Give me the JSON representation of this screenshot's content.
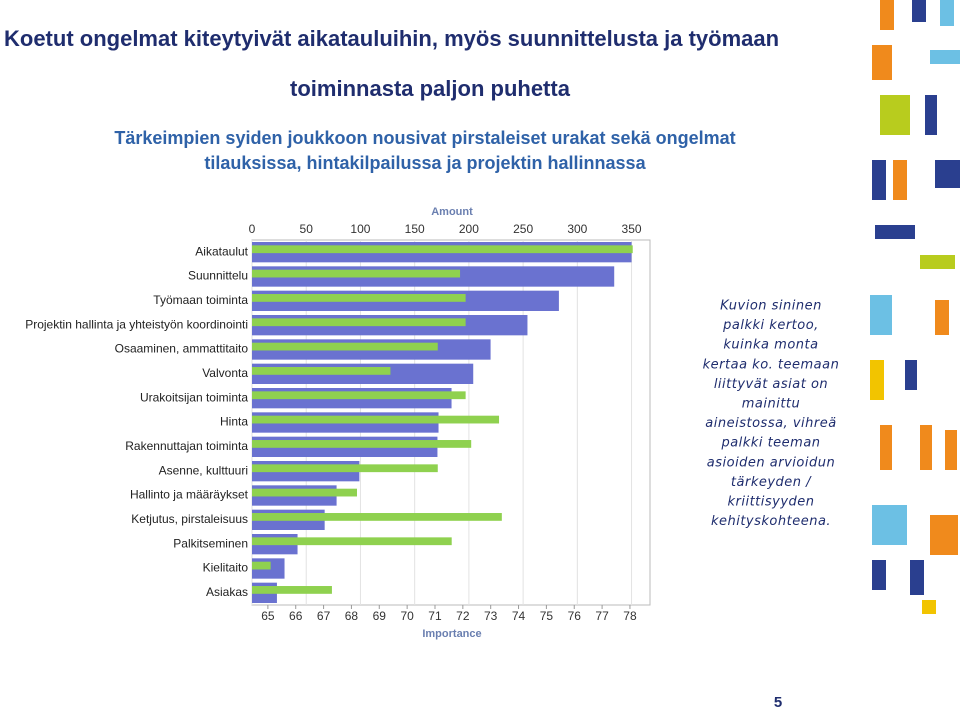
{
  "header": {
    "title_lines": [
      "Koetut ongelmat kiteytyivät aikatauluihin, myös suunnittelusta ja työmaan",
      "toiminnasta paljon puhetta"
    ],
    "subtitle_lines": [
      "Tärkeimpien syiden joukkoon nousivat pirstaleiset urakat sekä ongelmat",
      "tilauksissa, hintakilpailussa ja projektin hallinnassa"
    ]
  },
  "chart_data": {
    "type": "dual-hbar",
    "xlabel": "Amount",
    "x2label": "Importance",
    "categories": [
      "Aikataulut",
      "Suunnittelu",
      "Työmaan toiminta",
      "Projektin hallinta ja yhteistyön koordinointi",
      "Osaaminen, ammattitaito",
      "Valvonta",
      "Urakoitsijan toiminta",
      "Hinta",
      "Rakennuttajan toiminta",
      "Asenne, kulttuuri",
      "Hallinto ja määräykset",
      "Ketjutus, pirstaleisuus",
      "Palkitseminen",
      "Kielitaito",
      "Asiakas"
    ],
    "series": [
      {
        "color": "#6a72d0",
        "values": [
          350,
          334,
          283,
          254,
          220,
          204,
          184,
          172,
          171,
          99,
          78,
          67,
          42,
          30,
          23
        ]
      },
      {
        "color": "#8fd14f",
        "axis": "x2",
        "values": [
          78.1,
          71.9,
          72.1,
          72.1,
          71.1,
          69.4,
          72.1,
          73.3,
          72.3,
          71.1,
          68.2,
          73.4,
          71.6,
          65.1,
          67.3
        ]
      }
    ],
    "xlim": [
      0,
      367
    ],
    "xticks": [
      0,
      50,
      100,
      150,
      200,
      250,
      300,
      350
    ],
    "x2lim": [
      64.43,
      78.72
    ],
    "x2ticks": [
      65,
      66,
      67,
      68,
      69,
      70,
      71,
      72,
      73,
      74,
      75,
      76,
      77,
      78
    ],
    "grid": true
  },
  "note_lines": [
    "Kuvion sininen",
    "palkki kertoo,",
    "kuinka monta",
    "kertaa ko. teemaan",
    "liittyvät asiat on",
    "mainittu",
    "aineistossa, vihreä",
    "palkki teeman",
    "asioiden arvioidun",
    "tärkeyden /",
    "kriittisyyden",
    "kehityskohteena."
  ],
  "page_number": "5"
}
